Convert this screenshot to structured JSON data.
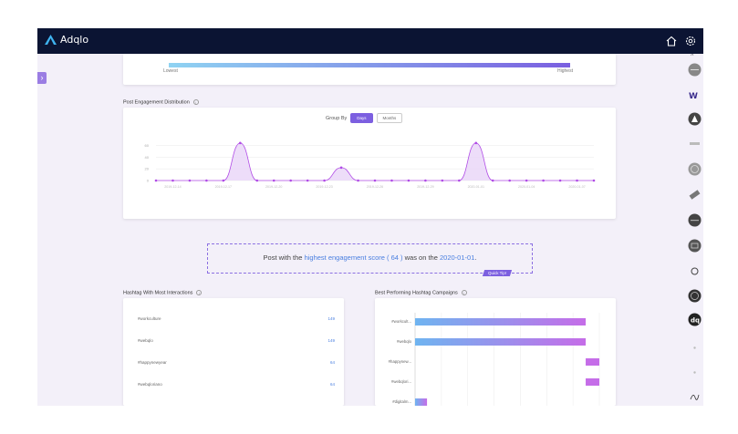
{
  "app": {
    "name": "Adqlo"
  },
  "top_icons": [
    "home-icon",
    "gear-icon"
  ],
  "gradient_legend": {
    "low": "Lowest",
    "high": "Highest"
  },
  "engagement": {
    "title": "Post Engagement Distribution",
    "group_by_label": "Group By",
    "options": [
      "Days",
      "Months"
    ],
    "selected": "Days",
    "y_ticks": [
      "60",
      "40",
      "20",
      "0"
    ],
    "x_ticks": [
      "2019-12-14",
      "2019-12-17",
      "2019-12-20",
      "2019-12-23",
      "2019-12-26",
      "2019-12-29",
      "2020-01-01",
      "2020-01-04",
      "2020-01-07"
    ]
  },
  "chart_data": {
    "type": "area",
    "x": [
      "2019-12-13",
      "2019-12-14",
      "2019-12-15",
      "2019-12-16",
      "2019-12-17",
      "2019-12-18",
      "2019-12-19",
      "2019-12-20",
      "2019-12-21",
      "2019-12-22",
      "2019-12-23",
      "2019-12-24",
      "2019-12-25",
      "2019-12-26",
      "2019-12-27",
      "2019-12-28",
      "2019-12-29",
      "2019-12-30",
      "2019-12-31",
      "2020-01-01",
      "2020-01-02",
      "2020-01-03",
      "2020-01-04",
      "2020-01-05",
      "2020-01-06",
      "2020-01-07",
      "2020-01-08"
    ],
    "series": [
      {
        "values": [
          0,
          0,
          0,
          0,
          0,
          64,
          0,
          0,
          0,
          0,
          0,
          22,
          0,
          0,
          0,
          0,
          0,
          0,
          0,
          64,
          0,
          0,
          0,
          0,
          0,
          0,
          0
        ]
      }
    ],
    "ylim": [
      0,
      70
    ],
    "colors": {
      "line": "#b04be6",
      "fill": "#e9d5f7",
      "point": "#b04be6"
    }
  },
  "tip": {
    "prefix": "Post with the ",
    "highlight1": "highest engagement score ( 64 )",
    "middle": " was on the ",
    "highlight2": "2020-01-01",
    "suffix": ".",
    "badge": "Quick Tip!"
  },
  "hashtags": {
    "title": "Hashtag With Most Interactions",
    "rows": [
      {
        "name": "#workculture",
        "count": "149"
      },
      {
        "name": "#webqlo",
        "count": "149"
      },
      {
        "name": "#happynewyear",
        "count": "64"
      },
      {
        "name": "#webqloriano",
        "count": "64"
      }
    ]
  },
  "campaigns": {
    "title": "Best Performing Hashtag Campaigns",
    "rows": [
      {
        "label": "#workcult...",
        "value": 100,
        "offset": 0
      },
      {
        "label": "#webqlo",
        "value": 100,
        "offset": 0
      },
      {
        "label": "#happynew...",
        "value": 8,
        "offset": 100
      },
      {
        "label": "#webqlori...",
        "value": 8,
        "offset": 100
      },
      {
        "label": "#digitalm...",
        "value": 7,
        "offset": 0
      }
    ],
    "colors": {
      "start": "#6fb4f0",
      "end": "#c56de8"
    }
  },
  "right_icons": [
    "circle-logo-icon",
    "w-logo-icon",
    "triangle-logo-icon",
    "barcode-logo-icon",
    "globe-logo-icon",
    "tag-logo-icon",
    "pill-logo-icon",
    "grid-logo-icon",
    "dollar-logo-icon",
    "badge-logo-icon",
    "dq-logo-icon",
    "dot-icon",
    "dot-icon",
    "signature-icon"
  ],
  "colors": {
    "accent": "#7c5fe0",
    "topbar": "#0b1433",
    "link": "#4a7fe0"
  }
}
